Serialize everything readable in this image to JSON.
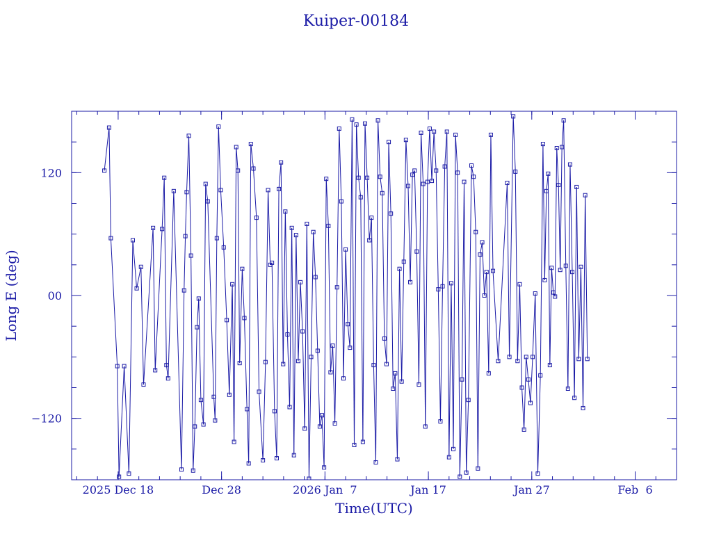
{
  "chart_data": {
    "type": "line",
    "title": "Kuiper-00184",
    "xlabel": "Time(UTC)",
    "ylabel": "Long E (deg)",
    "x_ticks": [
      {
        "date": "2025-12-18",
        "label": "2025 Dec 18"
      },
      {
        "date": "2025-12-28",
        "label": "Dec 28"
      },
      {
        "date": "2026-01-07",
        "label": "2026 Jan  7"
      },
      {
        "date": "2026-01-17",
        "label": "Jan 17"
      },
      {
        "date": "2026-01-27",
        "label": "Jan 27"
      },
      {
        "date": "2026-02-06",
        "label": "Feb  6"
      }
    ],
    "y_ticks": [
      {
        "value": 120,
        "label": "120"
      },
      {
        "value": 0,
        "label": "00"
      },
      {
        "value": -120,
        "label": "−120"
      }
    ],
    "xlim": [
      "2025-12-13T12:00",
      "2026-02-10T00:00"
    ],
    "ylim": [
      -180,
      180
    ],
    "grid": false,
    "series": [
      {
        "marker": "square",
        "points": [
          {
            "x": "2025-12-16T16:00",
            "y": 122
          },
          {
            "x": "2025-12-17T03:00",
            "y": 164
          },
          {
            "x": "2025-12-17T07:00",
            "y": 56
          },
          {
            "x": "2025-12-17T22:00",
            "y": -69
          },
          {
            "x": "2025-12-18T02:00",
            "y": -177
          },
          {
            "x": "2025-12-18T14:00",
            "y": -69
          },
          {
            "x": "2025-12-19T01:00",
            "y": -174
          },
          {
            "x": "2025-12-19T10:00",
            "y": 54
          },
          {
            "x": "2025-12-19T19:00",
            "y": 7
          },
          {
            "x": "2025-12-20T05:00",
            "y": 28
          },
          {
            "x": "2025-12-20T11:00",
            "y": -87
          },
          {
            "x": "2025-12-21T09:00",
            "y": 66
          },
          {
            "x": "2025-12-21T14:00",
            "y": -73
          },
          {
            "x": "2025-12-22T06:00",
            "y": 65
          },
          {
            "x": "2025-12-22T11:00",
            "y": 115
          },
          {
            "x": "2025-12-22T16:00",
            "y": -68
          },
          {
            "x": "2025-12-22T20:00",
            "y": -81
          },
          {
            "x": "2025-12-23T09:00",
            "y": 102
          },
          {
            "x": "2025-12-24T03:00",
            "y": -170
          },
          {
            "x": "2025-12-24T09:00",
            "y": 5
          },
          {
            "x": "2025-12-24T12:00",
            "y": 58
          },
          {
            "x": "2025-12-24T15:00",
            "y": 101
          },
          {
            "x": "2025-12-24T20:00",
            "y": 156
          },
          {
            "x": "2025-12-25T01:00",
            "y": 39
          },
          {
            "x": "2025-12-25T06:00",
            "y": -171
          },
          {
            "x": "2025-12-25T10:00",
            "y": -128
          },
          {
            "x": "2025-12-25T15:00",
            "y": -31
          },
          {
            "x": "2025-12-25T19:00",
            "y": -3
          },
          {
            "x": "2025-12-26T00:00",
            "y": -102
          },
          {
            "x": "2025-12-26T06:00",
            "y": -126
          },
          {
            "x": "2025-12-26T11:00",
            "y": 109
          },
          {
            "x": "2025-12-26T16:00",
            "y": 92
          },
          {
            "x": "2025-12-27T06:00",
            "y": -99
          },
          {
            "x": "2025-12-27T09:00",
            "y": -122
          },
          {
            "x": "2025-12-27T13:00",
            "y": 56
          },
          {
            "x": "2025-12-27T17:00",
            "y": 165
          },
          {
            "x": "2025-12-27T22:00",
            "y": 103
          },
          {
            "x": "2025-12-28T05:00",
            "y": 47
          },
          {
            "x": "2025-12-28T12:00",
            "y": -24
          },
          {
            "x": "2025-12-28T18:00",
            "y": -97
          },
          {
            "x": "2025-12-29T01:00",
            "y": 11
          },
          {
            "x": "2025-12-29T05:00",
            "y": -143
          },
          {
            "x": "2025-12-29T10:00",
            "y": 145
          },
          {
            "x": "2025-12-29T14:00",
            "y": 122
          },
          {
            "x": "2025-12-29T18:00",
            "y": -66
          },
          {
            "x": "2025-12-30T00:00",
            "y": 26
          },
          {
            "x": "2025-12-30T05:00",
            "y": -22
          },
          {
            "x": "2025-12-30T11:00",
            "y": -111
          },
          {
            "x": "2025-12-30T15:00",
            "y": -164
          },
          {
            "x": "2025-12-30T20:00",
            "y": 148
          },
          {
            "x": "2025-12-31T02:00",
            "y": 124
          },
          {
            "x": "2025-12-31T09:00",
            "y": 76
          },
          {
            "x": "2025-12-31T15:00",
            "y": -94
          },
          {
            "x": "2026-01-01T00:00",
            "y": -161
          },
          {
            "x": "2026-01-01T06:00",
            "y": -65
          },
          {
            "x": "2026-01-01T12:00",
            "y": 103
          },
          {
            "x": "2026-01-01T17:00",
            "y": 30
          },
          {
            "x": "2026-01-01T21:00",
            "y": 32
          },
          {
            "x": "2026-01-02T03:00",
            "y": -113
          },
          {
            "x": "2026-01-02T08:00",
            "y": -159
          },
          {
            "x": "2026-01-02T13:00",
            "y": 104
          },
          {
            "x": "2026-01-02T18:00",
            "y": 130
          },
          {
            "x": "2026-01-02T23:00",
            "y": -67
          },
          {
            "x": "2026-01-03T04:00",
            "y": 82
          },
          {
            "x": "2026-01-03T09:00",
            "y": -38
          },
          {
            "x": "2026-01-03T14:00",
            "y": -109
          },
          {
            "x": "2026-01-03T19:00",
            "y": 66
          },
          {
            "x": "2026-01-04T00:00",
            "y": -156
          },
          {
            "x": "2026-01-04T05:00",
            "y": 59
          },
          {
            "x": "2026-01-04T10:00",
            "y": -64
          },
          {
            "x": "2026-01-04T15:00",
            "y": 13
          },
          {
            "x": "2026-01-04T20:00",
            "y": -35
          },
          {
            "x": "2026-01-05T01:00",
            "y": -130
          },
          {
            "x": "2026-01-05T06:00",
            "y": 70
          },
          {
            "x": "2026-01-05T11:00",
            "y": -179
          },
          {
            "x": "2026-01-05T16:00",
            "y": -60
          },
          {
            "x": "2026-01-05T21:00",
            "y": 62
          },
          {
            "x": "2026-01-06T02:00",
            "y": 18
          },
          {
            "x": "2026-01-06T07:00",
            "y": -54
          },
          {
            "x": "2026-01-06T12:00",
            "y": -128
          },
          {
            "x": "2026-01-06T17:00",
            "y": -117
          },
          {
            "x": "2026-01-06T22:00",
            "y": -168
          },
          {
            "x": "2026-01-07T03:00",
            "y": 114
          },
          {
            "x": "2026-01-07T08:00",
            "y": 68
          },
          {
            "x": "2026-01-07T13:00",
            "y": -75
          },
          {
            "x": "2026-01-07T18:00",
            "y": -49
          },
          {
            "x": "2026-01-07T23:00",
            "y": -125
          },
          {
            "x": "2026-01-08T04:00",
            "y": 8
          },
          {
            "x": "2026-01-08T09:00",
            "y": 163
          },
          {
            "x": "2026-01-08T14:00",
            "y": 92
          },
          {
            "x": "2026-01-08T19:00",
            "y": -81
          },
          {
            "x": "2026-01-09T00:00",
            "y": 45
          },
          {
            "x": "2026-01-09T05:00",
            "y": -28
          },
          {
            "x": "2026-01-09T10:00",
            "y": -51
          },
          {
            "x": "2026-01-09T15:00",
            "y": 172
          },
          {
            "x": "2026-01-09T20:00",
            "y": -146
          },
          {
            "x": "2026-01-10T01:00",
            "y": 167
          },
          {
            "x": "2026-01-10T06:00",
            "y": 115
          },
          {
            "x": "2026-01-10T11:00",
            "y": 96
          },
          {
            "x": "2026-01-10T16:00",
            "y": -143
          },
          {
            "x": "2026-01-10T21:00",
            "y": 168
          },
          {
            "x": "2026-01-11T02:00",
            "y": 115
          },
          {
            "x": "2026-01-11T07:00",
            "y": 54
          },
          {
            "x": "2026-01-11T12:00",
            "y": 76
          },
          {
            "x": "2026-01-11T17:00",
            "y": -68
          },
          {
            "x": "2026-01-11T22:00",
            "y": -163
          },
          {
            "x": "2026-01-12T03:00",
            "y": 171
          },
          {
            "x": "2026-01-12T08:00",
            "y": 116
          },
          {
            "x": "2026-01-12T13:00",
            "y": 100
          },
          {
            "x": "2026-01-12T18:00",
            "y": -42
          },
          {
            "x": "2026-01-12T23:00",
            "y": -67
          },
          {
            "x": "2026-01-13T04:00",
            "y": 150
          },
          {
            "x": "2026-01-13T09:00",
            "y": 80
          },
          {
            "x": "2026-01-13T14:00",
            "y": -91
          },
          {
            "x": "2026-01-13T19:00",
            "y": -76
          },
          {
            "x": "2026-01-14T00:00",
            "y": -160
          },
          {
            "x": "2026-01-14T05:00",
            "y": 26
          },
          {
            "x": "2026-01-14T10:00",
            "y": -84
          },
          {
            "x": "2026-01-14T15:00",
            "y": 33
          },
          {
            "x": "2026-01-14T20:00",
            "y": 152
          },
          {
            "x": "2026-01-15T01:00",
            "y": 107
          },
          {
            "x": "2026-01-15T06:00",
            "y": 13
          },
          {
            "x": "2026-01-15T11:00",
            "y": 118
          },
          {
            "x": "2026-01-15T16:00",
            "y": 122
          },
          {
            "x": "2026-01-15T21:00",
            "y": 43
          },
          {
            "x": "2026-01-16T02:00",
            "y": -87
          },
          {
            "x": "2026-01-16T07:00",
            "y": 159
          },
          {
            "x": "2026-01-16T12:00",
            "y": 109
          },
          {
            "x": "2026-01-16T17:00",
            "y": -128
          },
          {
            "x": "2026-01-16T22:00",
            "y": 111
          },
          {
            "x": "2026-01-17T03:00",
            "y": 163
          },
          {
            "x": "2026-01-17T08:00",
            "y": 112
          },
          {
            "x": "2026-01-17T13:00",
            "y": 160
          },
          {
            "x": "2026-01-17T18:00",
            "y": 122
          },
          {
            "x": "2026-01-17T23:00",
            "y": 6
          },
          {
            "x": "2026-01-18T04:00",
            "y": -123
          },
          {
            "x": "2026-01-18T09:00",
            "y": 9
          },
          {
            "x": "2026-01-18T14:00",
            "y": 126
          },
          {
            "x": "2026-01-18T19:00",
            "y": 160
          },
          {
            "x": "2026-01-19T00:00",
            "y": -158
          },
          {
            "x": "2026-01-19T05:00",
            "y": 12
          },
          {
            "x": "2026-01-19T10:00",
            "y": -150
          },
          {
            "x": "2026-01-19T15:00",
            "y": 157
          },
          {
            "x": "2026-01-19T20:00",
            "y": 120
          },
          {
            "x": "2026-01-20T01:00",
            "y": -177
          },
          {
            "x": "2026-01-20T06:00",
            "y": -82
          },
          {
            "x": "2026-01-20T11:00",
            "y": 111
          },
          {
            "x": "2026-01-20T16:00",
            "y": -173
          },
          {
            "x": "2026-01-20T21:00",
            "y": -102
          },
          {
            "x": "2026-01-21T04:00",
            "y": 127
          },
          {
            "x": "2026-01-21T09:00",
            "y": 116
          },
          {
            "x": "2026-01-21T14:00",
            "y": 62
          },
          {
            "x": "2026-01-21T19:00",
            "y": -169
          },
          {
            "x": "2026-01-22T00:00",
            "y": 40
          },
          {
            "x": "2026-01-22T05:00",
            "y": 52
          },
          {
            "x": "2026-01-22T10:00",
            "y": 0
          },
          {
            "x": "2026-01-22T15:00",
            "y": 23
          },
          {
            "x": "2026-01-22T20:00",
            "y": -76
          },
          {
            "x": "2026-01-23T01:00",
            "y": 157
          },
          {
            "x": "2026-01-23T06:00",
            "y": 24
          },
          {
            "x": "2026-01-23T18:00",
            "y": -64
          },
          {
            "x": "2026-01-24T15:00",
            "y": 110
          },
          {
            "x": "2026-01-24T20:00",
            "y": -60
          },
          {
            "x": "2026-01-25T05:00",
            "y": 175
          },
          {
            "x": "2026-01-25T10:00",
            "y": 121
          },
          {
            "x": "2026-01-25T15:00",
            "y": -64
          },
          {
            "x": "2026-01-25T20:00",
            "y": 11
          },
          {
            "x": "2026-01-26T01:00",
            "y": -90
          },
          {
            "x": "2026-01-26T06:00",
            "y": -131
          },
          {
            "x": "2026-01-26T11:00",
            "y": -60
          },
          {
            "x": "2026-01-26T16:00",
            "y": -82
          },
          {
            "x": "2026-01-26T21:00",
            "y": -105
          },
          {
            "x": "2026-01-27T02:00",
            "y": -60
          },
          {
            "x": "2026-01-27T08:00",
            "y": 2
          },
          {
            "x": "2026-01-27T14:00",
            "y": -174
          },
          {
            "x": "2026-01-27T20:00",
            "y": -78
          },
          {
            "x": "2026-01-28T02:00",
            "y": 148
          },
          {
            "x": "2026-01-28T06:00",
            "y": 15
          },
          {
            "x": "2026-01-28T10:00",
            "y": 102
          },
          {
            "x": "2026-01-28T14:00",
            "y": 119
          },
          {
            "x": "2026-01-28T18:00",
            "y": -68
          },
          {
            "x": "2026-01-28T22:00",
            "y": 27
          },
          {
            "x": "2026-01-29T02:00",
            "y": 3
          },
          {
            "x": "2026-01-29T06:00",
            "y": -1
          },
          {
            "x": "2026-01-29T10:00",
            "y": 144
          },
          {
            "x": "2026-01-29T14:00",
            "y": 108
          },
          {
            "x": "2026-01-29T18:00",
            "y": 25
          },
          {
            "x": "2026-01-29T22:00",
            "y": 145
          },
          {
            "x": "2026-01-30T02:00",
            "y": 171
          },
          {
            "x": "2026-01-30T07:00",
            "y": 29
          },
          {
            "x": "2026-01-30T12:00",
            "y": -91
          },
          {
            "x": "2026-01-30T17:00",
            "y": 128
          },
          {
            "x": "2026-01-30T22:00",
            "y": 23
          },
          {
            "x": "2026-01-31T03:00",
            "y": -100
          },
          {
            "x": "2026-01-31T08:00",
            "y": 106
          },
          {
            "x": "2026-01-31T13:00",
            "y": -62
          },
          {
            "x": "2026-01-31T18:00",
            "y": 28
          },
          {
            "x": "2026-01-31T23:00",
            "y": -110
          },
          {
            "x": "2026-02-01T04:00",
            "y": 98
          },
          {
            "x": "2026-02-01T09:00",
            "y": -62
          }
        ]
      }
    ]
  }
}
